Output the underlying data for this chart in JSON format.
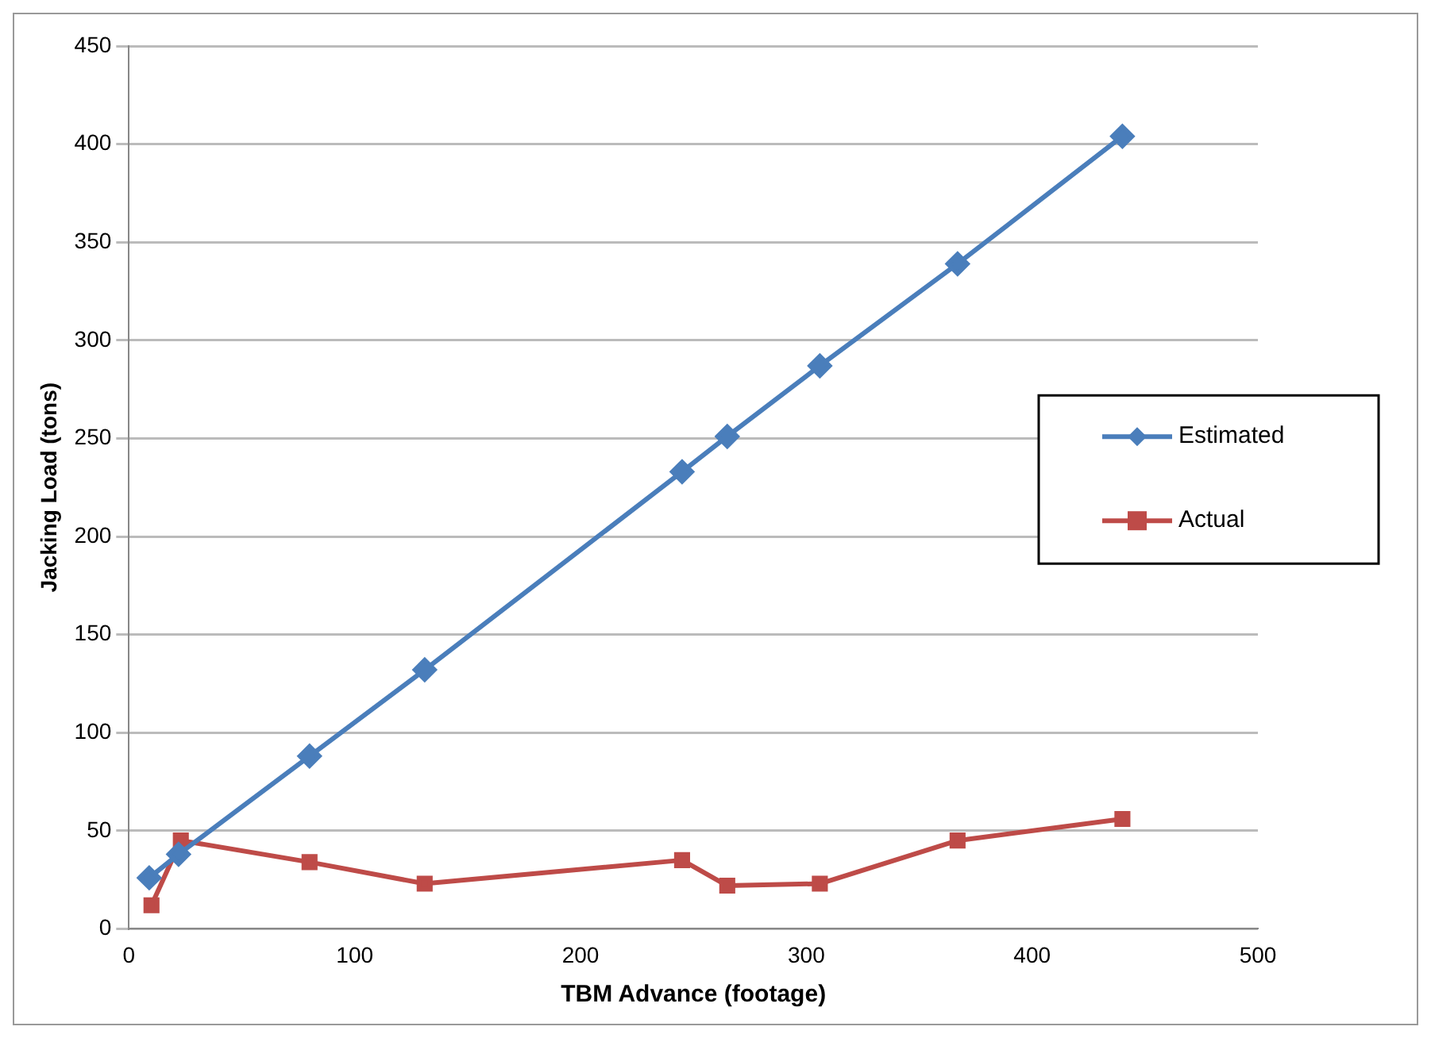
{
  "chart_data": {
    "type": "line",
    "xlabel": "TBM Advance (footage)",
    "ylabel": "Jacking Load (tons)",
    "xlim": [
      0,
      500
    ],
    "xticks": [
      0,
      100,
      200,
      300,
      400,
      500
    ],
    "ylim": [
      0,
      450
    ],
    "yticks": [
      0,
      50,
      100,
      150,
      200,
      250,
      300,
      350,
      400,
      450
    ],
    "grid": "y",
    "legend": "right",
    "line_style": "solid",
    "series": [
      {
        "name": "Estimated",
        "color": "#4a7ebb",
        "marker": "diamond",
        "x": [
          9,
          22,
          80,
          131,
          245,
          265,
          306,
          367,
          440
        ],
        "values": [
          26,
          38,
          88,
          132,
          233,
          251,
          287,
          339,
          404
        ]
      },
      {
        "name": "Actual",
        "color": "#be4b48",
        "marker": "square",
        "x": [
          10,
          23,
          80,
          131,
          245,
          265,
          306,
          367,
          440
        ],
        "values": [
          12,
          45,
          34,
          23,
          35,
          22,
          23,
          45,
          56
        ]
      }
    ]
  }
}
